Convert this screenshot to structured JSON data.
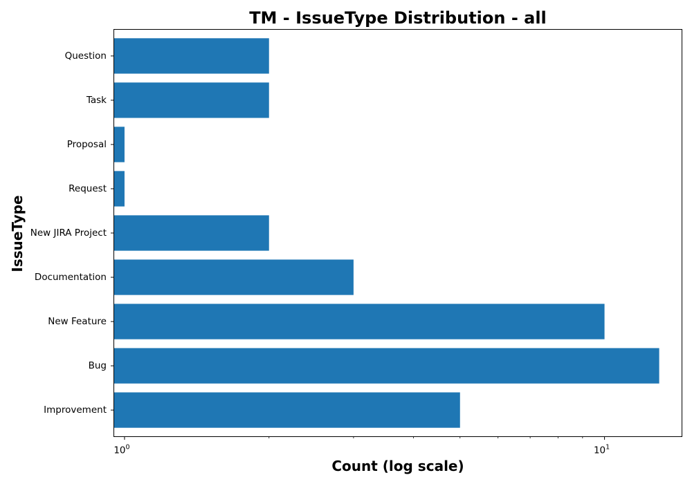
{
  "chart_data": {
    "type": "bar",
    "orientation": "horizontal",
    "title": "TM - IssueType Distribution - all",
    "xlabel": "Count (log scale)",
    "ylabel": "IssueType",
    "x_scale": "log",
    "xlim": [
      0.95,
      14.5
    ],
    "grid": false,
    "bar_color": "#1f77b4",
    "categories": [
      "Improvement",
      "Bug",
      "New Feature",
      "Documentation",
      "New JIRA Project",
      "Request",
      "Proposal",
      "Task",
      "Question"
    ],
    "values": [
      5,
      13,
      10,
      3,
      2,
      1,
      1,
      2,
      2
    ],
    "x_ticks": [
      {
        "base": "10",
        "exp": "0",
        "value": 1
      },
      {
        "base": "10",
        "exp": "1",
        "value": 10
      }
    ]
  }
}
